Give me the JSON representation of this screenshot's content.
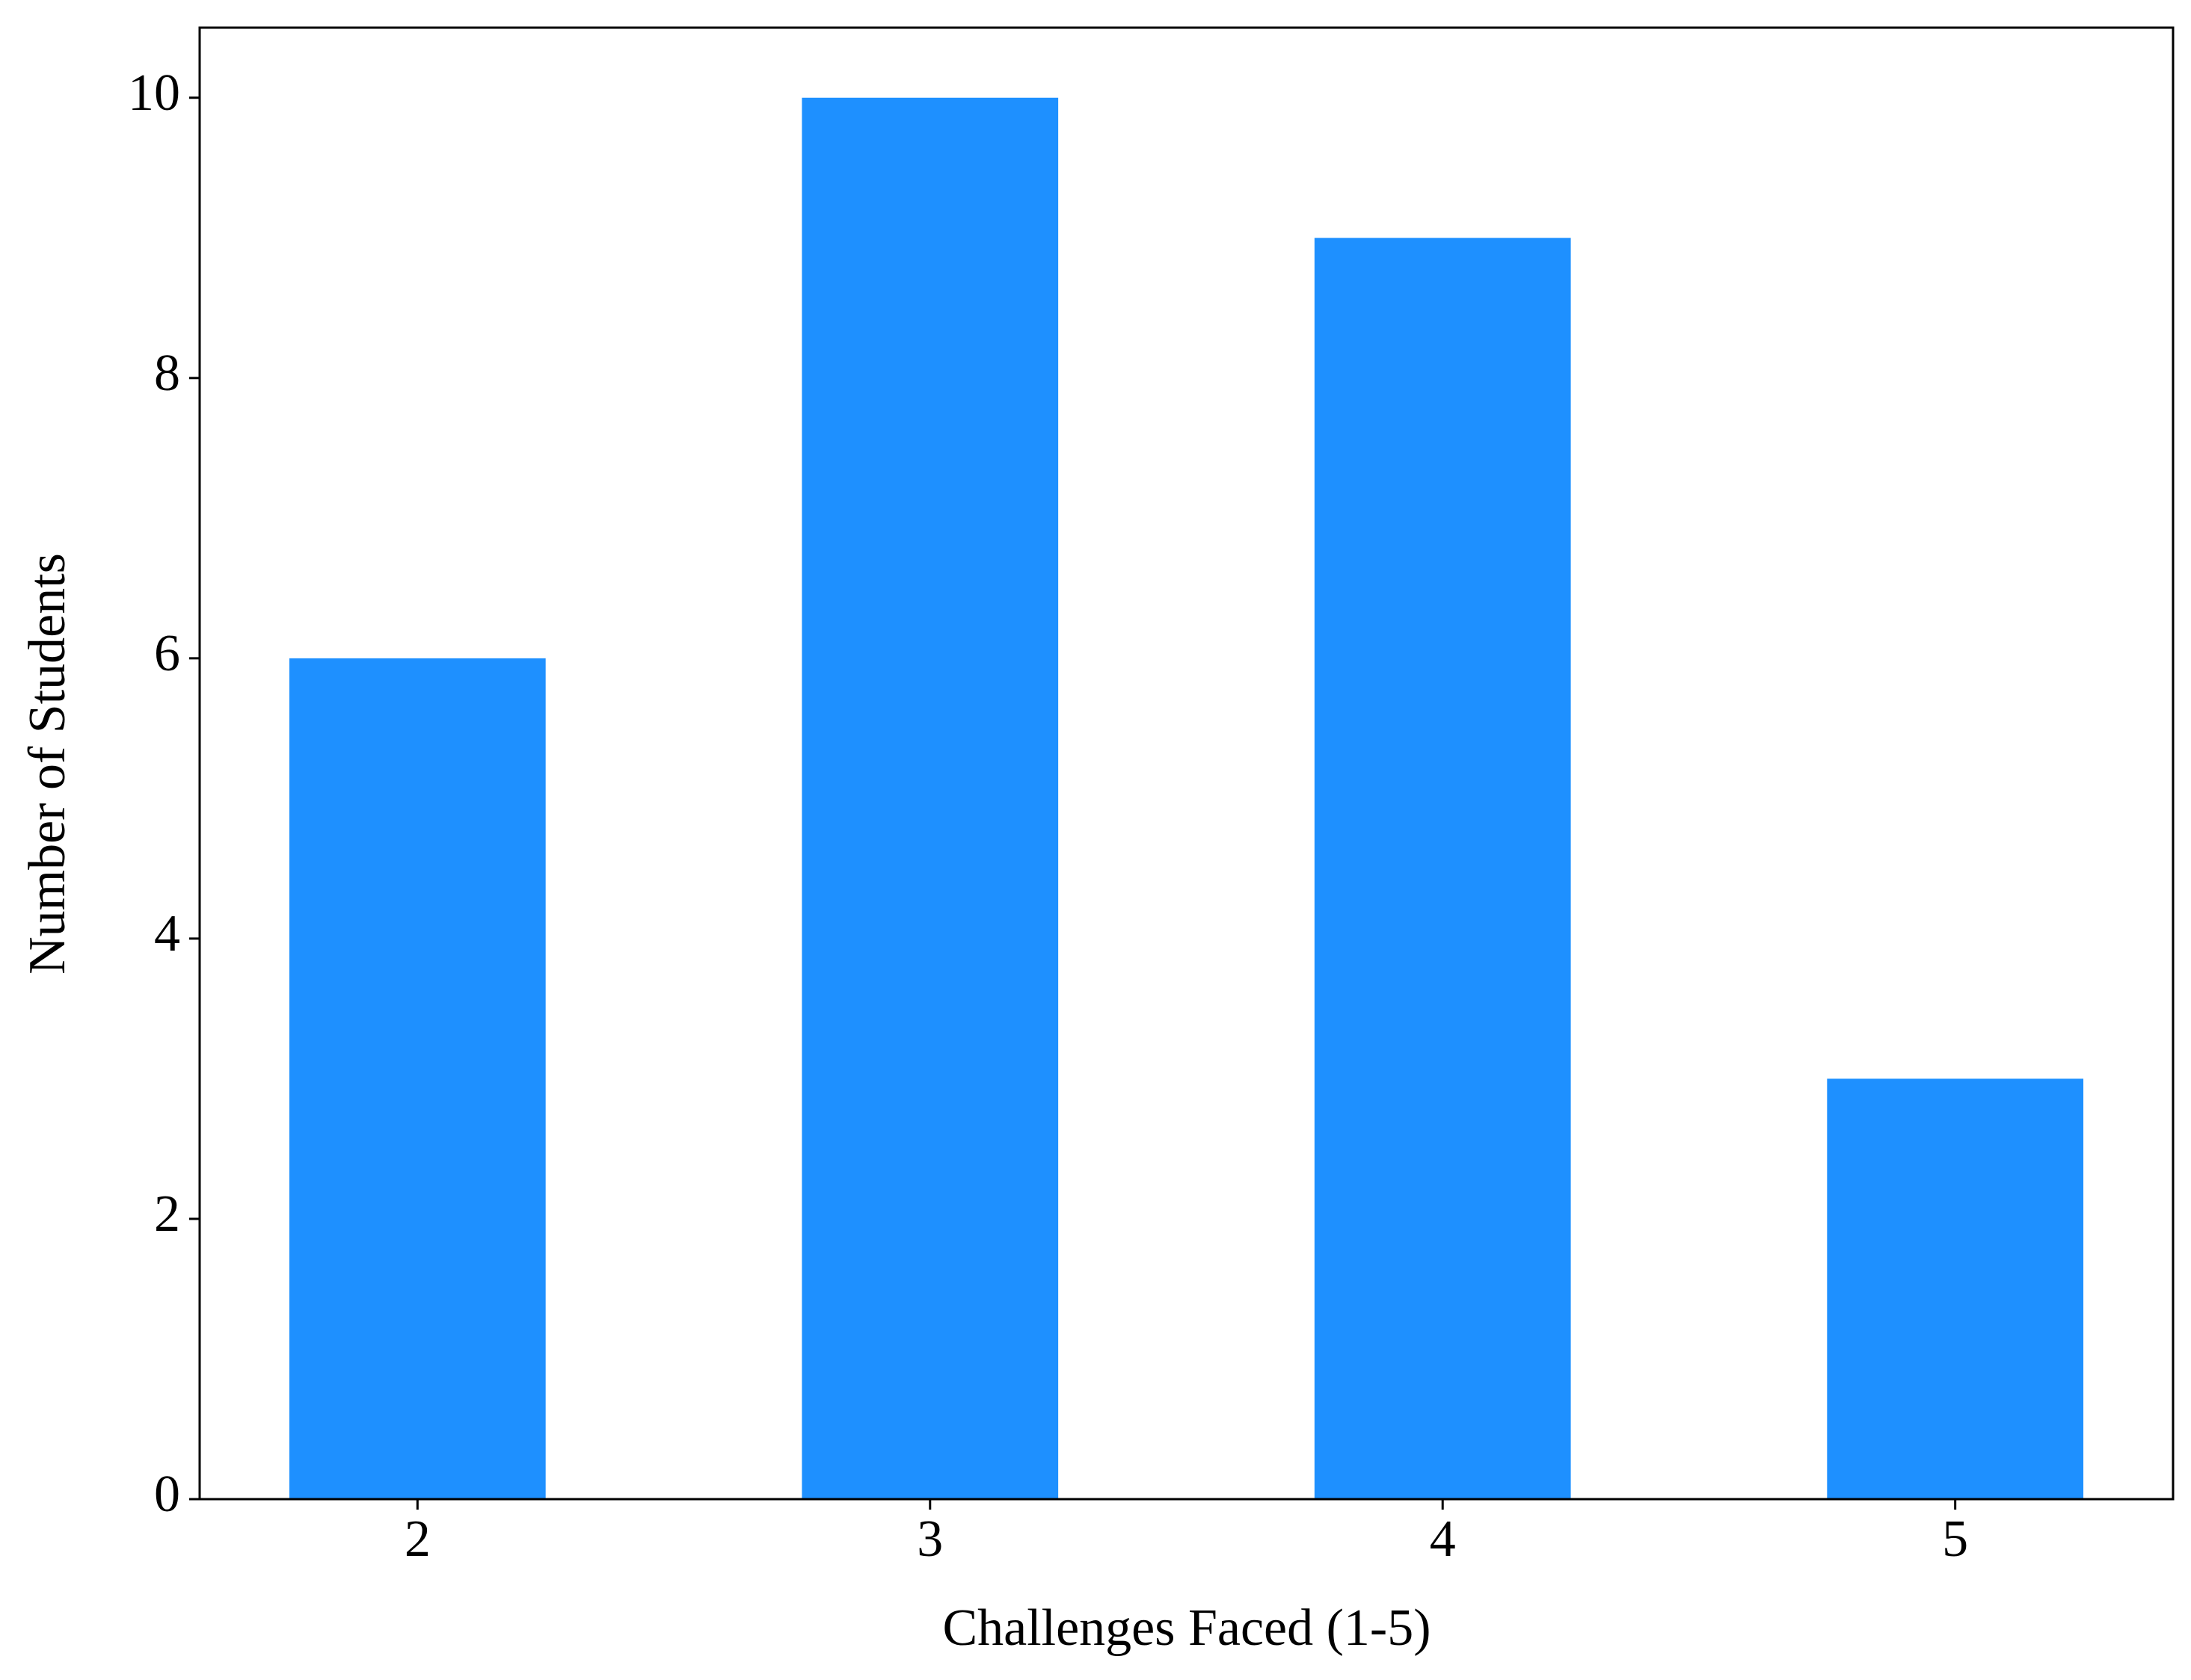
{
  "chart_data": {
    "type": "bar",
    "x_label": "Challenges Faced (1-5)",
    "y_label": "Number of Students",
    "categories": [
      "2",
      "3",
      "4",
      "5"
    ],
    "values": [
      6,
      10,
      9,
      3
    ],
    "color": "#1e90ff",
    "ylim": [
      0,
      10.5
    ],
    "yticks": [
      0,
      2,
      4,
      6,
      8,
      10
    ],
    "grid": false
  }
}
